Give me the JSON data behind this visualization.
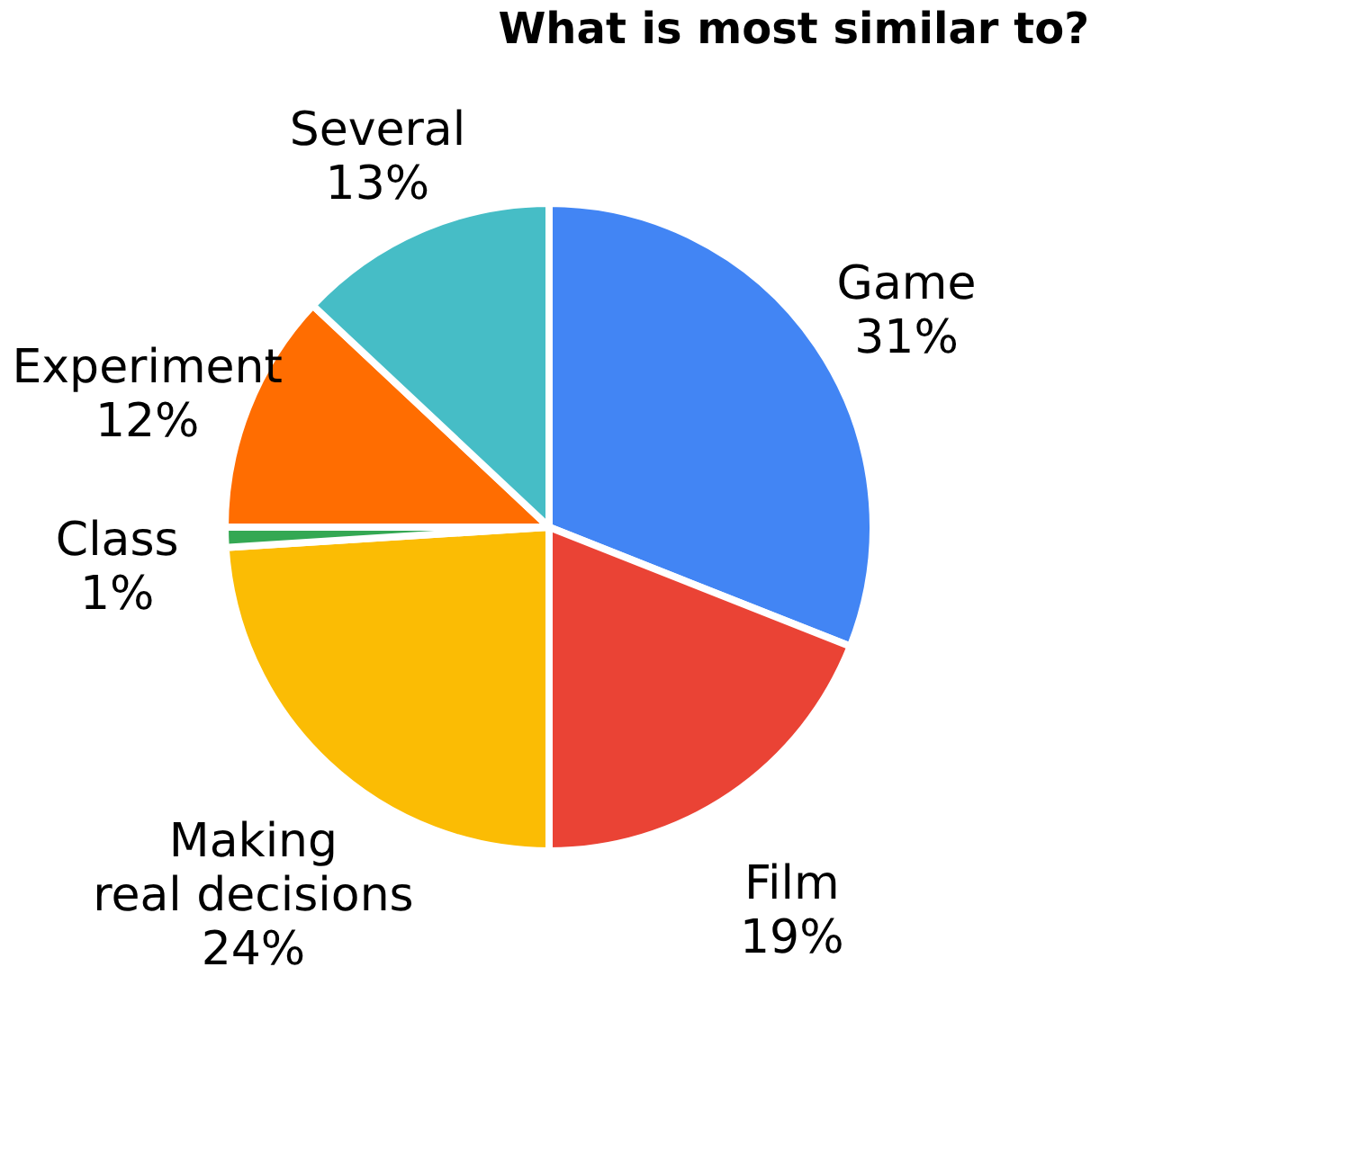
{
  "chart_data": {
    "type": "pie",
    "title": "What is most similar to?",
    "categories": [
      "Game",
      "Film",
      "Making real decisions",
      "Class",
      "Experiment",
      "Several"
    ],
    "values": [
      31,
      19,
      24,
      1,
      12,
      13
    ],
    "colors": [
      "#4285f4",
      "#ea4335",
      "#fbbc04",
      "#34a853",
      "#ff6d01",
      "#46bdc6"
    ],
    "value_labels": [
      "31%",
      "19%",
      "24%",
      "1%",
      "12%",
      "13%"
    ],
    "legend": false
  }
}
